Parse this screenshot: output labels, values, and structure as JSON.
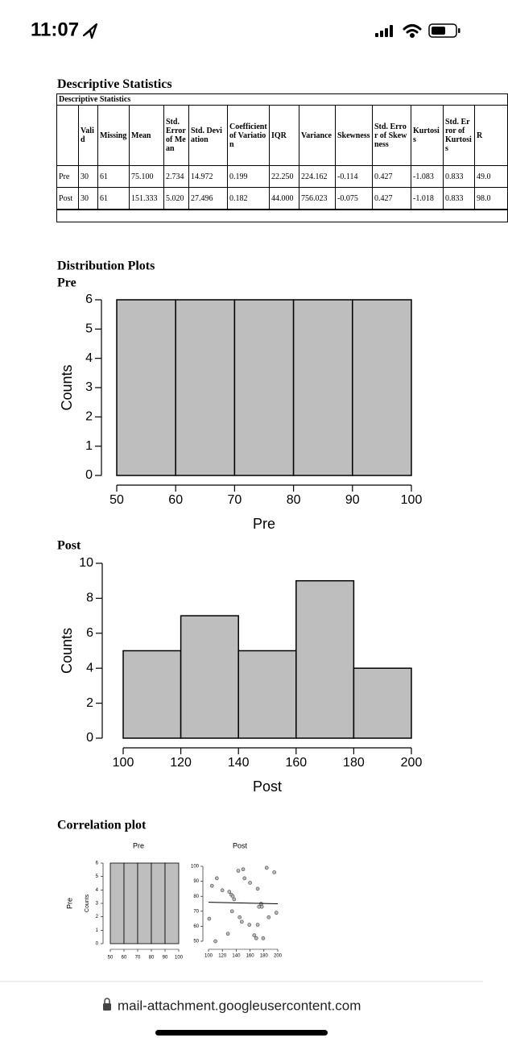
{
  "status_bar": {
    "time": "11:07"
  },
  "table": {
    "title": "Descriptive Statistics",
    "caption": "Descriptive Statistics",
    "columns": [
      "Valid",
      "Missing",
      "Mean",
      "Std. Error of Mean",
      "Std. Deviation",
      "Coefficient of Variation",
      "IQR",
      "Variance",
      "Skewness",
      "Std. Error of Skewness",
      "Kurtosis",
      "Std. Error of Kurtosis",
      "R"
    ],
    "rows": [
      [
        "Pre",
        "30",
        "61",
        "75.100",
        "2.734",
        "14.972",
        "0.199",
        "22.250",
        "224.162",
        "-0.114",
        "0.427",
        "-1.083",
        "0.833",
        "49.0"
      ],
      [
        "Post",
        "30",
        "61",
        "151.333",
        "5.020",
        "27.496",
        "0.182",
        "44.000",
        "756.023",
        "-0.075",
        "0.427",
        "-1.018",
        "0.833",
        "98.0"
      ]
    ]
  },
  "sections": {
    "distribution": "Distribution Plots",
    "correlation": "Correlation plot"
  },
  "chart_data": [
    {
      "type": "histogram",
      "title": "Pre",
      "x_label": "Pre",
      "y_label": "Counts",
      "color": "#bebebe",
      "bins": [
        50,
        60,
        70,
        80,
        90,
        100
      ],
      "counts": [
        6,
        6,
        6,
        6,
        6
      ],
      "xlim": [
        50,
        100
      ],
      "xticks": [
        50,
        60,
        70,
        80,
        90,
        100
      ],
      "ylim": [
        0,
        6
      ],
      "yticks": [
        0,
        1,
        2,
        3,
        4,
        5,
        6
      ]
    },
    {
      "type": "histogram",
      "title": "Post",
      "x_label": "Post",
      "y_label": "Counts",
      "color": "#bebebe",
      "bins": [
        100,
        120,
        140,
        160,
        180,
        200
      ],
      "counts": [
        5,
        7,
        5,
        9,
        4
      ],
      "xlim": [
        100,
        200
      ],
      "xticks": [
        100,
        120,
        140,
        160,
        180,
        200
      ],
      "ylim": [
        0,
        10
      ],
      "yticks": [
        0,
        2,
        4,
        6,
        8,
        10
      ]
    },
    {
      "type": "histogram",
      "title": "Pre",
      "row_label": "Pre",
      "y_label": "Counts",
      "color": "#bebebe",
      "bins": [
        50,
        60,
        70,
        80,
        90,
        100
      ],
      "counts": [
        6,
        6,
        6,
        6,
        6
      ],
      "xlim": [
        50,
        100
      ],
      "xticks": [
        50,
        60,
        70,
        80,
        90,
        100
      ],
      "ylim": [
        0,
        6
      ],
      "yticks": [
        0,
        1,
        2,
        3,
        4,
        5,
        6
      ]
    },
    {
      "type": "scatter",
      "title": "Post",
      "color": "#555555",
      "x": [
        105,
        112,
        120,
        130,
        133,
        135,
        137,
        143,
        150,
        152,
        160,
        171,
        184,
        195,
        101,
        110,
        128,
        134,
        145,
        148,
        159,
        166,
        171,
        173,
        176,
        177,
        179,
        187,
        198,
        169
      ],
      "y": [
        87,
        92,
        84,
        83,
        81,
        80,
        78,
        97,
        98,
        92,
        89,
        85,
        99,
        96,
        65,
        50,
        55,
        70,
        66,
        63,
        61,
        54,
        61,
        73,
        75,
        73,
        52,
        66,
        69,
        52
      ],
      "trend_x": [
        100,
        200
      ],
      "trend_y": [
        76,
        75
      ],
      "xlim": [
        100,
        200
      ],
      "xticks": [
        100,
        120,
        140,
        160,
        180,
        200
      ],
      "ylim": [
        50,
        100
      ],
      "yticks": [
        50,
        60,
        70,
        80,
        90,
        100
      ]
    }
  ],
  "address_bar": {
    "url": "mail-attachment.googleusercontent.com"
  }
}
